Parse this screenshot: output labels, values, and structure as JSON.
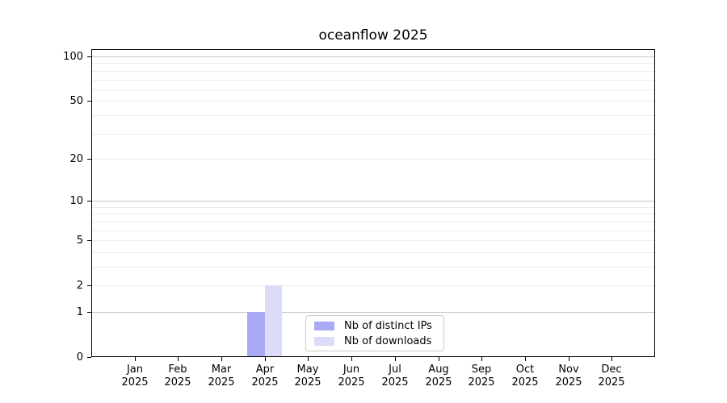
{
  "chart_data": {
    "type": "bar",
    "title": "oceanflow 2025",
    "x_ticks": [
      {
        "month": "Jan",
        "year": "2025"
      },
      {
        "month": "Feb",
        "year": "2025"
      },
      {
        "month": "Mar",
        "year": "2025"
      },
      {
        "month": "Apr",
        "year": "2025"
      },
      {
        "month": "May",
        "year": "2025"
      },
      {
        "month": "Jun",
        "year": "2025"
      },
      {
        "month": "Jul",
        "year": "2025"
      },
      {
        "month": "Aug",
        "year": "2025"
      },
      {
        "month": "Sep",
        "year": "2025"
      },
      {
        "month": "Oct",
        "year": "2025"
      },
      {
        "month": "Nov",
        "year": "2025"
      },
      {
        "month": "Dec",
        "year": "2025"
      }
    ],
    "series": [
      {
        "name": "Nb of distinct IPs",
        "color": "#a9a9f4",
        "values": [
          0,
          0,
          0,
          1,
          0,
          0,
          0,
          0,
          0,
          0,
          0,
          0
        ]
      },
      {
        "name": "Nb of downloads",
        "color": "#dcdcf8",
        "values": [
          0,
          0,
          0,
          2,
          0,
          0,
          0,
          0,
          0,
          0,
          0,
          0
        ]
      }
    ],
    "yscale": "log1p",
    "ylim": [
      0,
      112
    ],
    "yticks": [
      0,
      1,
      2,
      5,
      10,
      20,
      50,
      100
    ],
    "minor_yticks": [
      3,
      4,
      6,
      7,
      8,
      9,
      30,
      40,
      60,
      70,
      80,
      90
    ],
    "major_gridlines": [
      1,
      10,
      100
    ],
    "xlabel": "",
    "ylabel": "",
    "grid": true,
    "legend_position": "lower center",
    "colors": {
      "background": "#ffffff",
      "grid_minor": "#ececec",
      "grid_major": "#c6c6c6",
      "axis": "#000000",
      "legend_border": "#cbcbcb"
    }
  }
}
